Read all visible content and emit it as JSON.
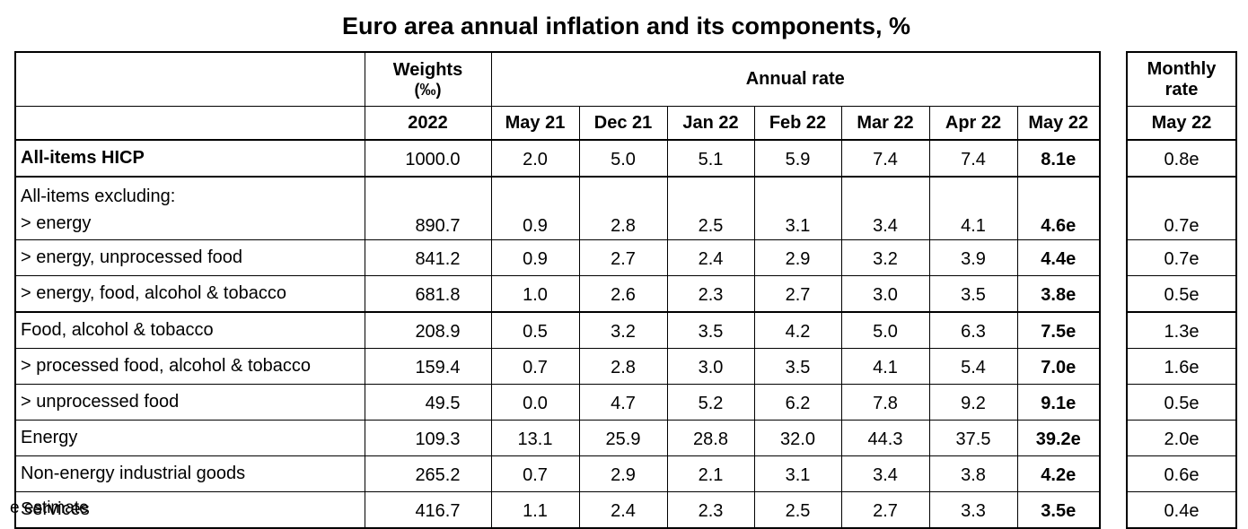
{
  "chart_data": {
    "type": "table",
    "title": "Euro area annual inflation and its components, %",
    "header": {
      "weights_label": "Weights",
      "weights_unit": "(‰)",
      "weights_year": "2022",
      "annual_rate_label": "Annual rate",
      "monthly_rate_label_line1": "Monthly",
      "monthly_rate_label_line2": "rate",
      "annual_columns": [
        "May 21",
        "Dec 21",
        "Jan 22",
        "Feb 22",
        "Mar 22",
        "Apr 22",
        "May 22"
      ],
      "monthly_column": "May 22"
    },
    "group_label": "All-items excluding:",
    "rows": [
      {
        "label": "All-items HICP",
        "weight": "1000.0",
        "annual": [
          "2.0",
          "5.0",
          "5.1",
          "5.9",
          "7.4",
          "7.4",
          "8.1e"
        ],
        "monthly": "0.8e"
      },
      {
        "label": "> energy",
        "weight": "890.7",
        "annual": [
          "0.9",
          "2.8",
          "2.5",
          "3.1",
          "3.4",
          "4.1",
          "4.6e"
        ],
        "monthly": "0.7e"
      },
      {
        "label": "> energy, unprocessed food",
        "weight": "841.2",
        "annual": [
          "0.9",
          "2.7",
          "2.4",
          "2.9",
          "3.2",
          "3.9",
          "4.4e"
        ],
        "monthly": "0.7e"
      },
      {
        "label": "> energy, food, alcohol & tobacco",
        "weight": "681.8",
        "annual": [
          "1.0",
          "2.6",
          "2.3",
          "2.7",
          "3.0",
          "3.5",
          "3.8e"
        ],
        "monthly": "0.5e"
      },
      {
        "label": "Food, alcohol & tobacco",
        "weight": "208.9",
        "annual": [
          "0.5",
          "3.2",
          "3.5",
          "4.2",
          "5.0",
          "6.3",
          "7.5e"
        ],
        "monthly": "1.3e"
      },
      {
        "label": "> processed food, alcohol & tobacco",
        "weight": "159.4",
        "annual": [
          "0.7",
          "2.8",
          "3.0",
          "3.5",
          "4.1",
          "5.4",
          "7.0e"
        ],
        "monthly": "1.6e"
      },
      {
        "label": "> unprocessed food",
        "weight": "49.5",
        "annual": [
          "0.0",
          "4.7",
          "5.2",
          "6.2",
          "7.8",
          "9.2",
          "9.1e"
        ],
        "monthly": "0.5e"
      },
      {
        "label": "Energy",
        "weight": "109.3",
        "annual": [
          "13.1",
          "25.9",
          "28.8",
          "32.0",
          "44.3",
          "37.5",
          "39.2e"
        ],
        "monthly": "2.0e"
      },
      {
        "label": "Non-energy industrial goods",
        "weight": "265.2",
        "annual": [
          "0.7",
          "2.9",
          "2.1",
          "3.1",
          "3.4",
          "3.8",
          "4.2e"
        ],
        "monthly": "0.6e"
      },
      {
        "label": "Services",
        "weight": "416.7",
        "annual": [
          "1.1",
          "2.4",
          "2.3",
          "2.5",
          "2.7",
          "3.3",
          "3.5e"
        ],
        "monthly": "0.4e"
      }
    ]
  },
  "footnote": "e estimate"
}
